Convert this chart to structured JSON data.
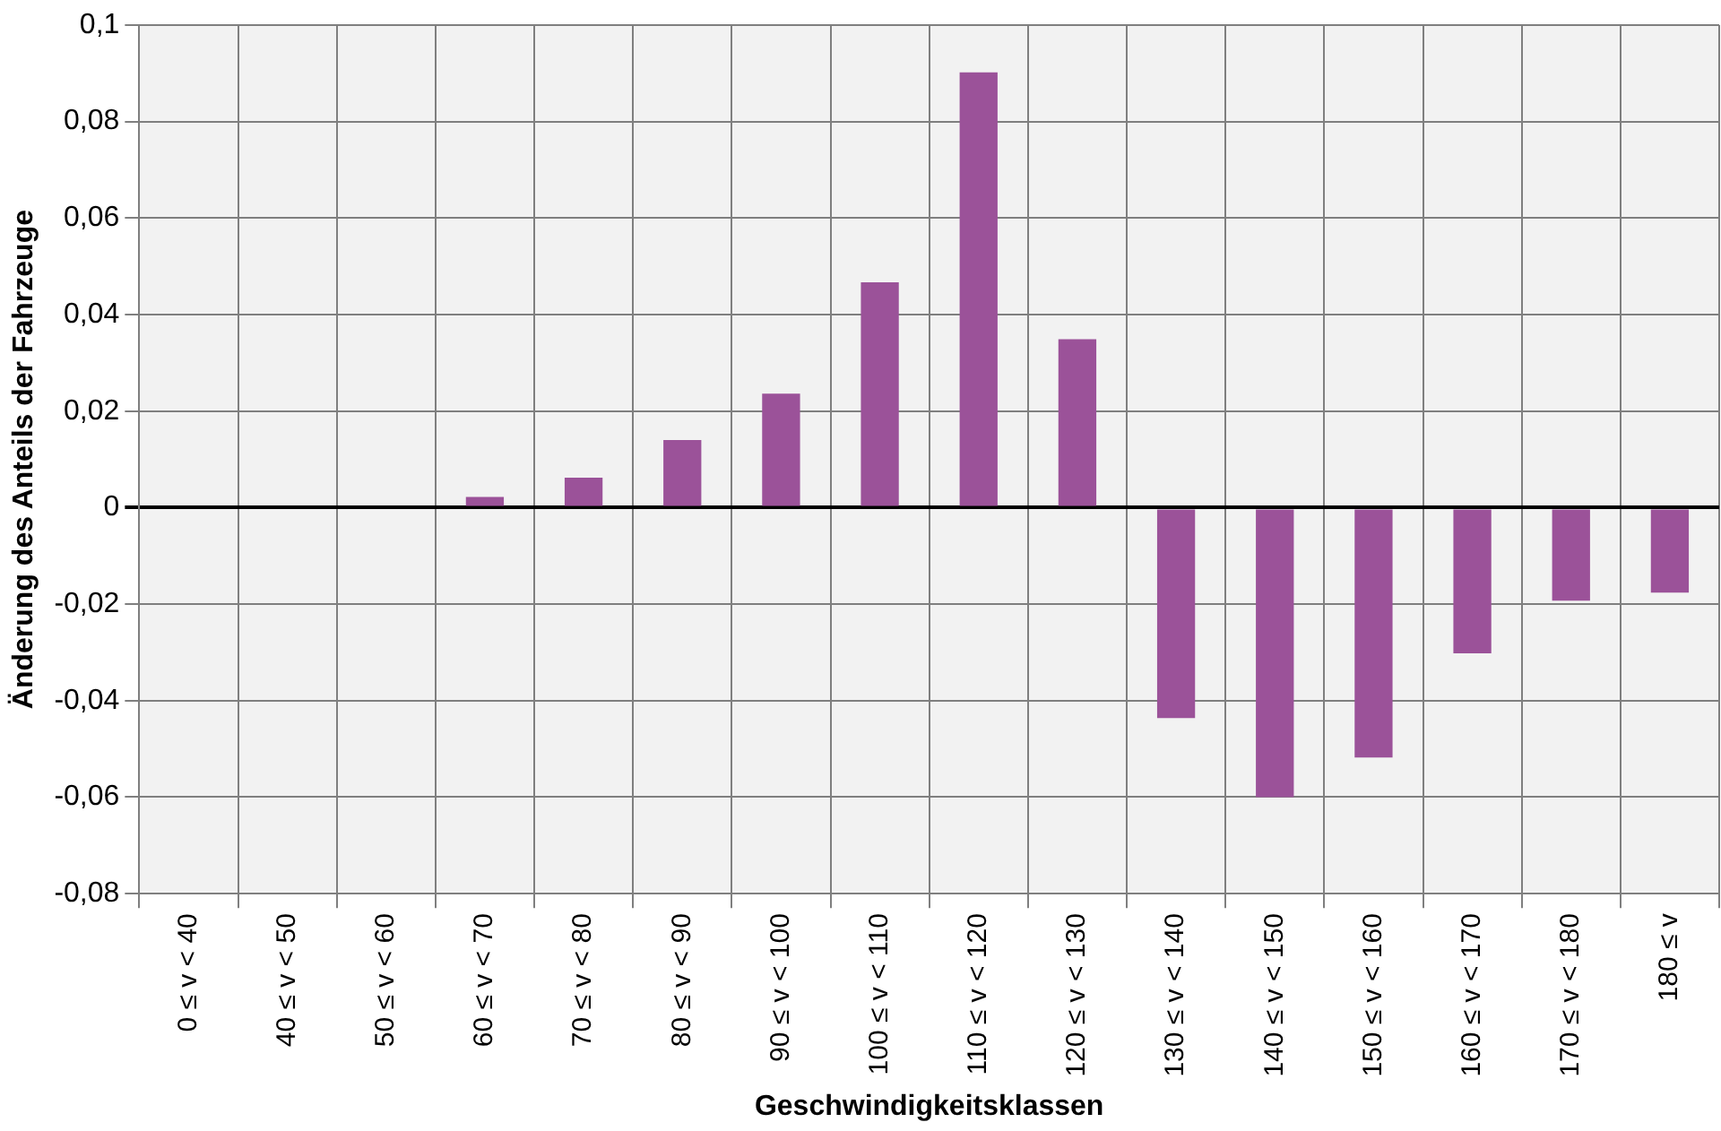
{
  "chart_data": {
    "type": "bar",
    "xlabel": "Geschwindigkeitsklassen",
    "ylabel": "Änderung des Anteils der Fahrzeuge",
    "categories": [
      "0 ≤ v < 40",
      "40 ≤ v < 50",
      "50 ≤ v < 60",
      "60 ≤ v < 70",
      "70 ≤ v < 80",
      "80 ≤ v < 90",
      "90 ≤ v < 100",
      "100 ≤ v < 110",
      "110 ≤ v < 120",
      "120 ≤ v < 130",
      "130 ≤ v < 140",
      "140 ≤ v < 150",
      "150 ≤ v < 160",
      "160 ≤ v < 170",
      "170 ≤ v < 180",
      "180 ≤ v"
    ],
    "values": [
      0,
      0,
      0,
      0.0022,
      0.0062,
      0.014,
      0.0236,
      0.0467,
      0.0902,
      0.0349,
      -0.0436,
      -0.06,
      -0.0518,
      -0.0302,
      -0.0193,
      -0.0176
    ],
    "color": "#9b5299",
    "ylim": [
      -0.08,
      0.1
    ],
    "yticks": [
      {
        "value": -0.08,
        "label": "-0,08"
      },
      {
        "value": -0.06,
        "label": "-0,06"
      },
      {
        "value": -0.04,
        "label": "-0,04"
      },
      {
        "value": -0.02,
        "label": "-0,02"
      },
      0,
      {
        "value": 0.02,
        "label": "0,02"
      },
      {
        "value": 0.04,
        "label": "0,04"
      },
      {
        "value": 0.06,
        "label": "0,06"
      },
      {
        "value": 0.08,
        "label": "0,08"
      },
      {
        "value": 0.1,
        "label": "0,1"
      }
    ],
    "grid": true
  }
}
